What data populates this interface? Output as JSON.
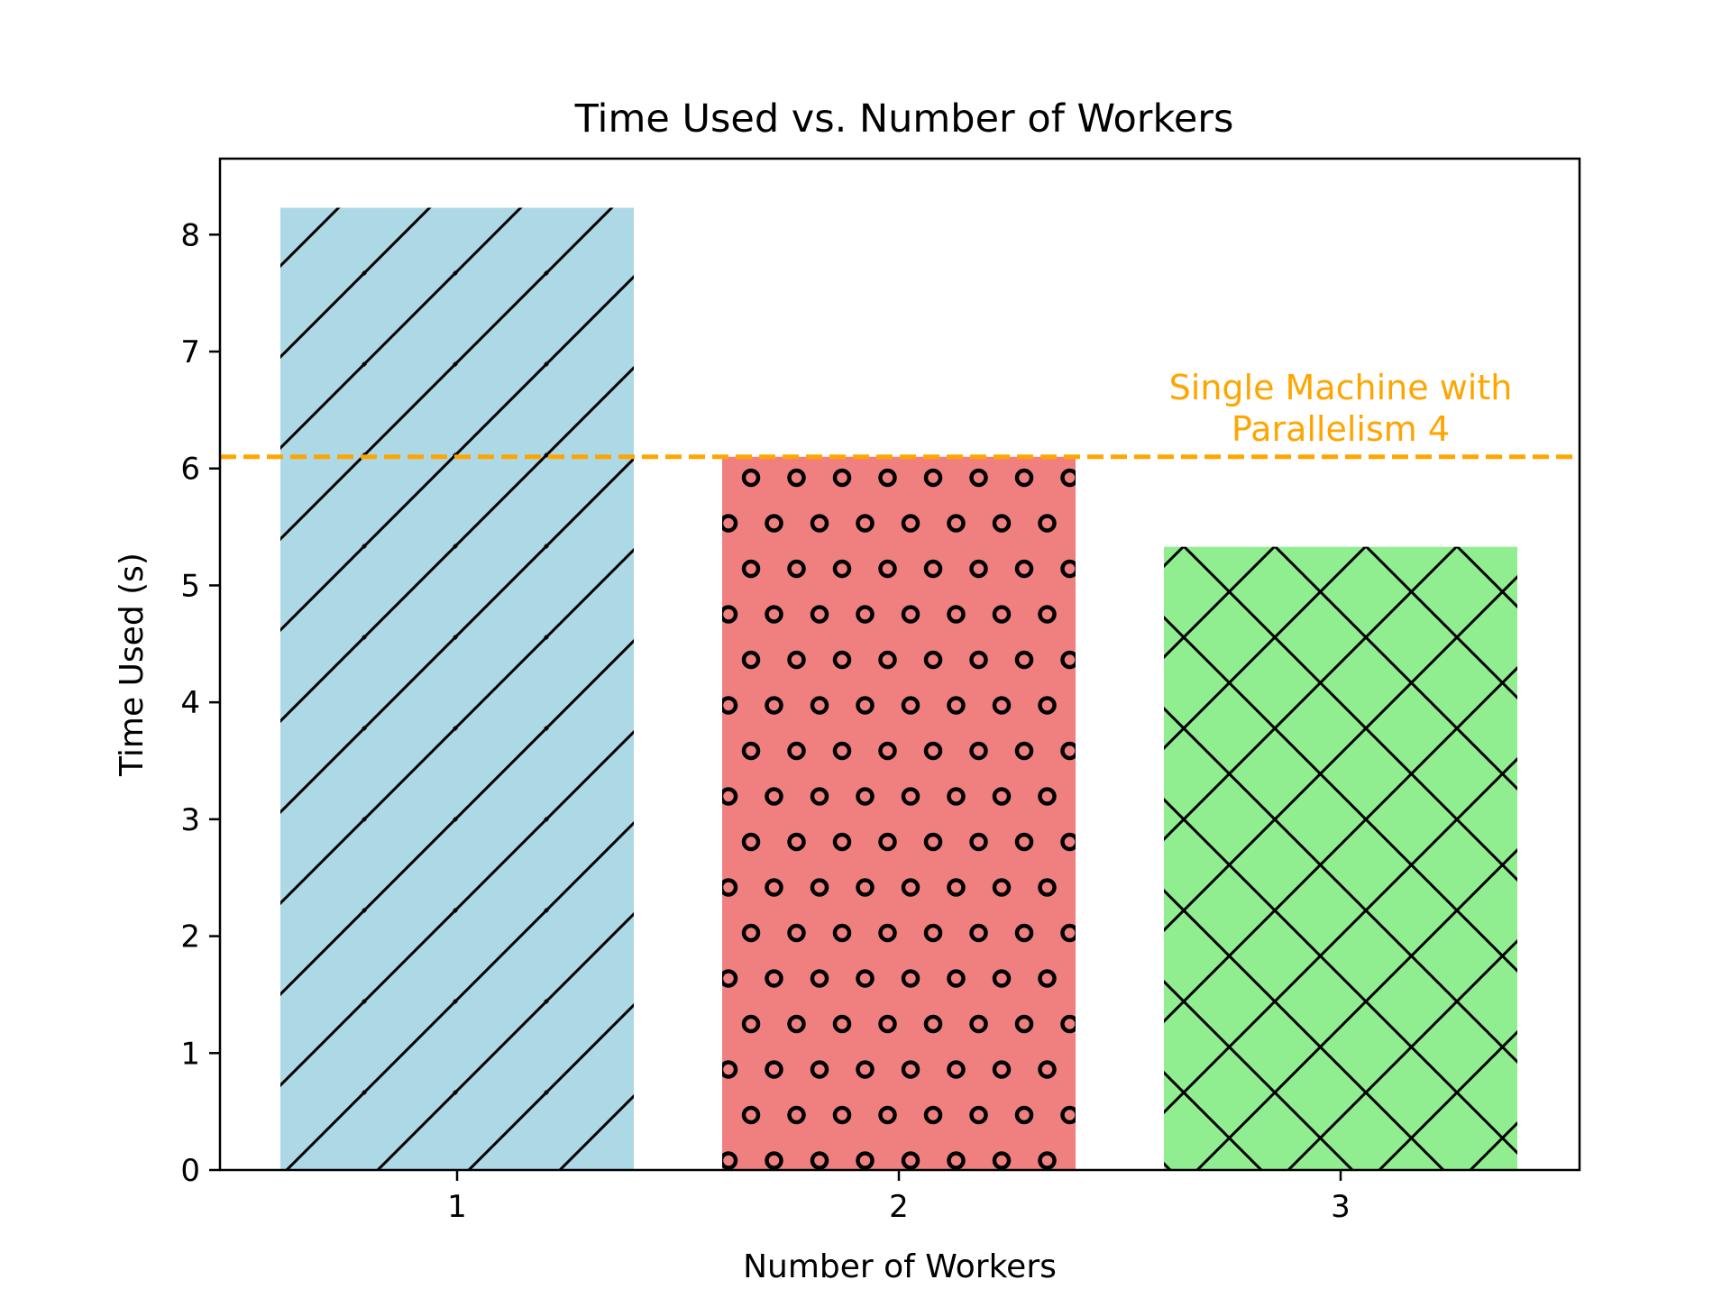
{
  "chart_data": {
    "type": "bar",
    "title": "Time Used vs. Number of Workers",
    "xlabel": "Number of Workers",
    "ylabel": "Time Used (s)",
    "categories": [
      "1",
      "2",
      "3"
    ],
    "values": [
      8.23,
      6.1,
      5.33
    ],
    "bar_colors": [
      "#add8e6",
      "#f08080",
      "#90ee90"
    ],
    "bar_hatches": [
      "diagonal",
      "circles",
      "crosshatch"
    ],
    "ylim": [
      0,
      8.65
    ],
    "yticks": [
      "0",
      "1",
      "2",
      "3",
      "4",
      "5",
      "6",
      "7",
      "8"
    ],
    "reference_line": {
      "value": 6.1,
      "label_lines": [
        "Single Machine with",
        "Parallelism 4"
      ],
      "color": "#ffa500",
      "style": "dashed"
    },
    "grid": false,
    "legend": "none"
  }
}
